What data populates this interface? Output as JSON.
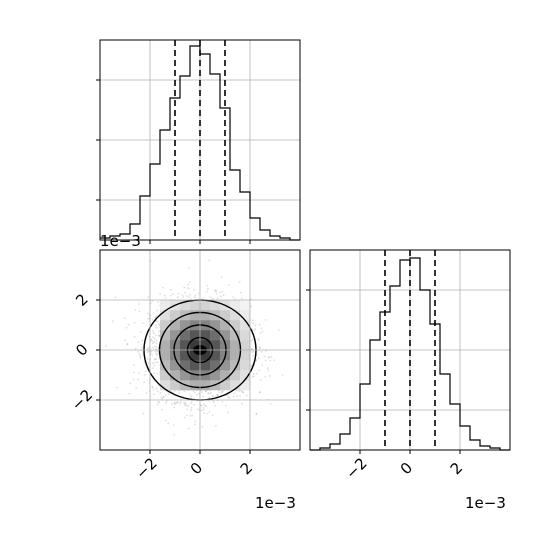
{
  "chart_data": [
    {
      "type": "histogram",
      "panel": "marginal-x-top",
      "xlim": [
        -0.004,
        0.004
      ],
      "ylim": [
        0,
        1.0
      ],
      "bin_edges": [
        -0.004,
        -0.0036,
        -0.0032,
        -0.0028,
        -0.0024,
        -0.002,
        -0.0016,
        -0.0012,
        -0.0008,
        -0.0004,
        0,
        0.0004,
        0.0008,
        0.0012,
        0.0016,
        0.002,
        0.0024,
        0.0028,
        0.0032,
        0.0036,
        0.004
      ],
      "values": [
        0.01,
        0.02,
        0.03,
        0.08,
        0.22,
        0.38,
        0.55,
        0.71,
        0.82,
        0.97,
        0.93,
        0.83,
        0.66,
        0.35,
        0.24,
        0.11,
        0.05,
        0.02,
        0.01,
        0
      ],
      "quantile_lines": [
        -0.001,
        0.0,
        0.001
      ],
      "grid": true,
      "yticks_count": 3,
      "axis_scale_label": "1e−3"
    },
    {
      "type": "histogram",
      "panel": "marginal-y-right",
      "xlim": [
        -0.004,
        0.004
      ],
      "ylim": [
        0,
        1.0
      ],
      "bin_edges": [
        -0.004,
        -0.0036,
        -0.0032,
        -0.0028,
        -0.0024,
        -0.002,
        -0.0016,
        -0.0012,
        -0.0008,
        -0.0004,
        0,
        0.0004,
        0.0008,
        0.0012,
        0.0016,
        0.002,
        0.0024,
        0.0028,
        0.0032,
        0.0036,
        0.004
      ],
      "values": [
        0,
        0.01,
        0.03,
        0.08,
        0.16,
        0.33,
        0.55,
        0.69,
        0.82,
        0.95,
        0.96,
        0.8,
        0.63,
        0.38,
        0.23,
        0.12,
        0.05,
        0.02,
        0.01,
        0
      ],
      "quantile_lines": [
        -0.001,
        0.0,
        0.001
      ],
      "grid": true,
      "xticks": [
        -0.002,
        0,
        0.002
      ],
      "xtick_labels": [
        "−2",
        "0",
        "2"
      ],
      "yticks_count": 3,
      "axis_scale_label": "1e−3"
    },
    {
      "type": "scatter-density",
      "panel": "joint",
      "xlim": [
        -0.004,
        0.004
      ],
      "ylim": [
        -0.004,
        0.004
      ],
      "xticks": [
        -0.002,
        0,
        0.002
      ],
      "xtick_labels": [
        "−2",
        "0",
        "2"
      ],
      "yticks": [
        -0.002,
        0,
        0.002
      ],
      "ytick_labels": [
        "−2",
        "0",
        "2"
      ],
      "x_scale_label": "1e−3",
      "y_scale_label": "1e−3",
      "center": [
        0,
        0
      ],
      "sigma": 0.001,
      "contour_radii": [
        0.0005,
        0.001,
        0.0015,
        0.002
      ],
      "grid": true,
      "point_color": "#808080",
      "line_color": "#000000"
    }
  ]
}
